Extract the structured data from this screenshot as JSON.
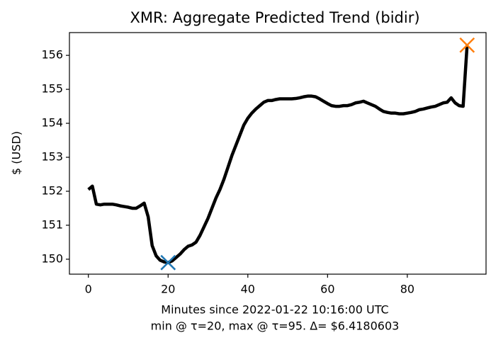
{
  "chart_data": {
    "type": "line",
    "title": "XMR: Aggregate Predicted Trend (bidir)",
    "xlabel": "Minutes since 2022-01-22 10:16:00 UTC",
    "xlabel2": "min @ τ=20, max @ τ=95. Δ= $6.4180603",
    "ylabel": "$ (USD)",
    "xlim": [
      -4.75,
      99.75
    ],
    "ylim": [
      149.56,
      156.67
    ],
    "xticks": [
      0,
      20,
      40,
      60,
      80
    ],
    "yticks": [
      150,
      151,
      152,
      153,
      154,
      155,
      156
    ],
    "series": [
      {
        "color": "#000000",
        "x": [
          0,
          1,
          2,
          3,
          4,
          5,
          6,
          7,
          8,
          9,
          10,
          11,
          12,
          13,
          14,
          15,
          16,
          17,
          18,
          19,
          20,
          21,
          22,
          23,
          24,
          25,
          26,
          27,
          28,
          29,
          30,
          31,
          32,
          33,
          34,
          35,
          36,
          37,
          38,
          39,
          40,
          41,
          42,
          43,
          44,
          45,
          46,
          47,
          48,
          49,
          50,
          51,
          52,
          53,
          54,
          55,
          56,
          57,
          58,
          59,
          60,
          61,
          62,
          63,
          64,
          65,
          66,
          67,
          68,
          69,
          70,
          71,
          72,
          73,
          74,
          75,
          76,
          77,
          78,
          79,
          80,
          81,
          82,
          83,
          84,
          85,
          86,
          87,
          88,
          89,
          90,
          91,
          92,
          93,
          94,
          95
        ],
        "values": [
          152.05,
          152.15,
          151.62,
          151.6,
          151.62,
          151.62,
          151.62,
          151.6,
          151.57,
          151.55,
          151.53,
          151.5,
          151.5,
          151.57,
          151.65,
          151.25,
          150.4,
          150.1,
          149.97,
          149.92,
          149.9,
          149.95,
          150.05,
          150.15,
          150.28,
          150.38,
          150.42,
          150.5,
          150.7,
          150.95,
          151.2,
          151.5,
          151.8,
          152.05,
          152.35,
          152.7,
          153.05,
          153.35,
          153.65,
          153.95,
          154.15,
          154.3,
          154.42,
          154.52,
          154.62,
          154.67,
          154.67,
          154.7,
          154.72,
          154.72,
          154.72,
          154.72,
          154.73,
          154.75,
          154.78,
          154.8,
          154.8,
          154.78,
          154.72,
          154.65,
          154.58,
          154.52,
          154.5,
          154.5,
          154.52,
          154.52,
          154.55,
          154.6,
          154.62,
          154.65,
          154.6,
          154.55,
          154.5,
          154.42,
          154.35,
          154.32,
          154.3,
          154.3,
          154.28,
          154.28,
          154.3,
          154.32,
          154.35,
          154.4,
          154.42,
          154.45,
          154.48,
          154.5,
          154.55,
          154.6,
          154.62,
          154.75,
          154.6,
          154.52,
          154.5,
          156.3
        ]
      }
    ],
    "markers": [
      {
        "x": 20,
        "y": 149.9,
        "color": "#1f77b4"
      },
      {
        "x": 95,
        "y": 156.3,
        "color": "#ff7f0e"
      }
    ]
  }
}
